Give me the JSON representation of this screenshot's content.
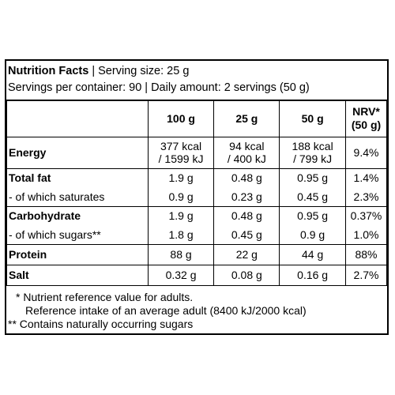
{
  "header": {
    "title": "Nutrition Facts",
    "serving_size": "| Serving size: 25 g",
    "line2": "Servings per container: 90 | Daily amount: 2 servings (50 g)"
  },
  "columns": [
    "100 g",
    "25 g",
    "50 g",
    "NRV*",
    "(50 g)"
  ],
  "rows": [
    {
      "name": "Energy",
      "v100a": "377 kcal",
      "v100b": "/ 1599 kJ",
      "v25a": "94 kcal",
      "v25b": "/ 400 kJ",
      "v50a": "188 kcal",
      "v50b": "/ 799 kJ",
      "nrv": "9.4%"
    },
    {
      "name": "Total fat",
      "v100": "1.9 g",
      "v25": "0.48 g",
      "v50": "0.95 g",
      "nrv": "1.4%"
    },
    {
      "name": "- of which saturates",
      "v100": "0.9 g",
      "v25": "0.23 g",
      "v50": "0.45 g",
      "nrv": "2.3%"
    },
    {
      "name": "Carbohydrate",
      "v100": "1.9 g",
      "v25": "0.48 g",
      "v50": "0.95 g",
      "nrv": "0.37%"
    },
    {
      "name": "- of which sugars**",
      "v100": "1.8 g",
      "v25": "0.45 g",
      "v50": "0.9 g",
      "nrv": "1.0%"
    },
    {
      "name": "Protein",
      "v100": "88 g",
      "v25": "22 g",
      "v50": "44 g",
      "nrv": "88%"
    },
    {
      "name": "Salt",
      "v100": "0.32 g",
      "v25": "0.08 g",
      "v50": "0.16 g",
      "nrv": "2.7%"
    }
  ],
  "footnotes": {
    "f1": "* Nutrient reference value for adults.",
    "f2": "Reference intake of an average adult (8400 kJ/2000 kcal)",
    "f3": "** Contains naturally occurring sugars"
  }
}
